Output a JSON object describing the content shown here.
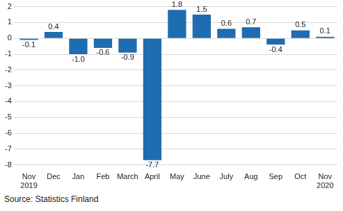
{
  "chart_data": {
    "type": "bar",
    "categories": [
      "Nov 2019",
      "Dec",
      "Jan",
      "Feb",
      "March",
      "April",
      "May",
      "June",
      "July",
      "Aug",
      "Sep",
      "Oct",
      "Nov 2020"
    ],
    "values": [
      -0.1,
      0.4,
      -1.0,
      -0.6,
      -0.9,
      -7.7,
      1.8,
      1.5,
      0.6,
      0.7,
      -0.4,
      0.5,
      0.1
    ],
    "value_labels": [
      "-0.1",
      "0.4",
      "-1.0",
      "-0.6",
      "-0.9",
      "-7.7",
      "1.8",
      "1.5",
      "0.6",
      "0.7",
      "-0.4",
      "0.5",
      "0.1"
    ],
    "data_labels": true,
    "color": "#1f6cb0",
    "ylim": [
      -8,
      2
    ],
    "yticks": [
      -8,
      -7,
      -6,
      -5,
      -4,
      -3,
      -2,
      -1,
      0,
      1,
      2
    ],
    "grid": true,
    "source": "Source: Statistics Finland"
  }
}
